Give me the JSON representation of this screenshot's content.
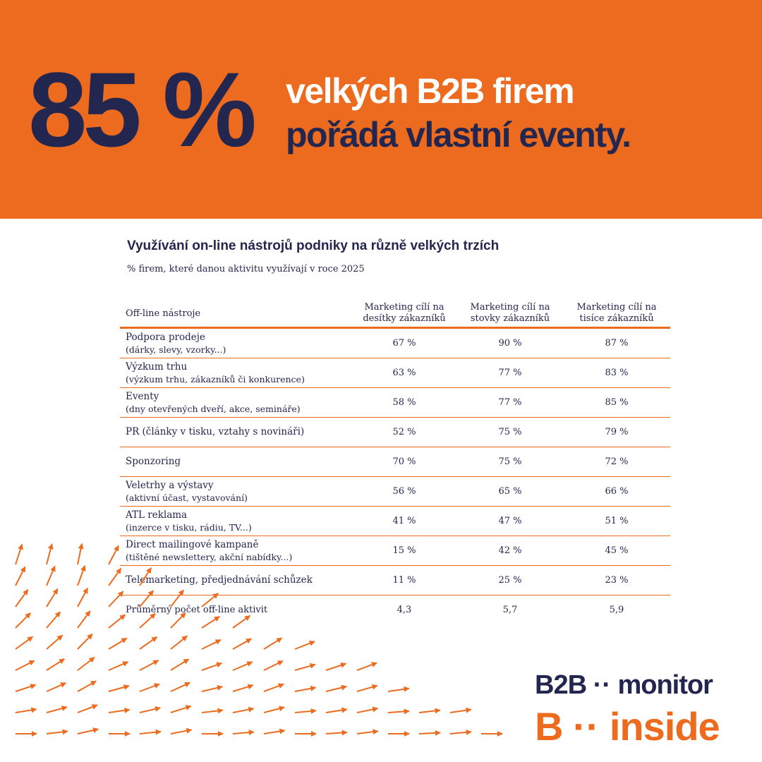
{
  "header": {
    "big_stat": "85 %",
    "headline_line1": "velkých B2B firem",
    "headline_line2": "pořádá vlastní eventy."
  },
  "table": {
    "title": "Využívání on-line nástrojů podniky na různě velkých trzích",
    "subtitle": "% firem, které danou aktivitu využívají v roce 2025",
    "columns": [
      "Off-line nástroje",
      "Marketing cílí na desítky zákazníků",
      "Marketing cílí na stovky zákazníků",
      "Marketing cílí na tisíce zákazníků"
    ],
    "rows": [
      {
        "label": "Podpora prodeje",
        "sublabel": "(dárky, slevy, vzorky...)",
        "values": [
          "67 %",
          "90 %",
          "87 %"
        ]
      },
      {
        "label": "Výzkum trhu",
        "sublabel": "(výzkum trhu, zákazníků či konkurence)",
        "values": [
          "63 %",
          "77 %",
          "83 %"
        ]
      },
      {
        "label": "Eventy",
        "sublabel": "(dny otevřených dveří, akce, semináře)",
        "values": [
          "58 %",
          "77 %",
          "85 %"
        ]
      },
      {
        "label": "PR (články v tisku, vztahy s novináři)",
        "sublabel": "",
        "values": [
          "52 %",
          "75 %",
          "79 %"
        ]
      },
      {
        "label": "Sponzoring",
        "sublabel": "",
        "values": [
          "70 %",
          "75 %",
          "72 %"
        ]
      },
      {
        "label": "Veletrhy a výstavy",
        "sublabel": "(aktivní účast, vystavování)",
        "values": [
          "56 %",
          "65 %",
          "66 %"
        ]
      },
      {
        "label": "ATL reklama",
        "sublabel": "(inzerce v tisku, rádiu, TV...)",
        "values": [
          "41 %",
          "47 %",
          "51 %"
        ]
      },
      {
        "label": "Direct mailingové kampaně",
        "sublabel": "(tištěné newslettery, akční nabídky...)",
        "values": [
          "15 %",
          "42 %",
          "45 %"
        ]
      },
      {
        "label": "Telemarketing, předjednávání schůzek",
        "sublabel": "",
        "values": [
          "11 %",
          "25 %",
          "23 %"
        ]
      }
    ],
    "average": {
      "label": "Průměrný počet off-line aktivit",
      "values": [
        "4,3",
        "5,7",
        "5,9"
      ]
    }
  },
  "logo": {
    "brand1_a": "B2B",
    "brand1_b": "monitor",
    "brand2_a": "B",
    "brand2_b": "inside",
    "dots": "··"
  },
  "colors": {
    "orange": "#ec6b1e",
    "navy": "#23264f",
    "white": "#ffffff"
  }
}
